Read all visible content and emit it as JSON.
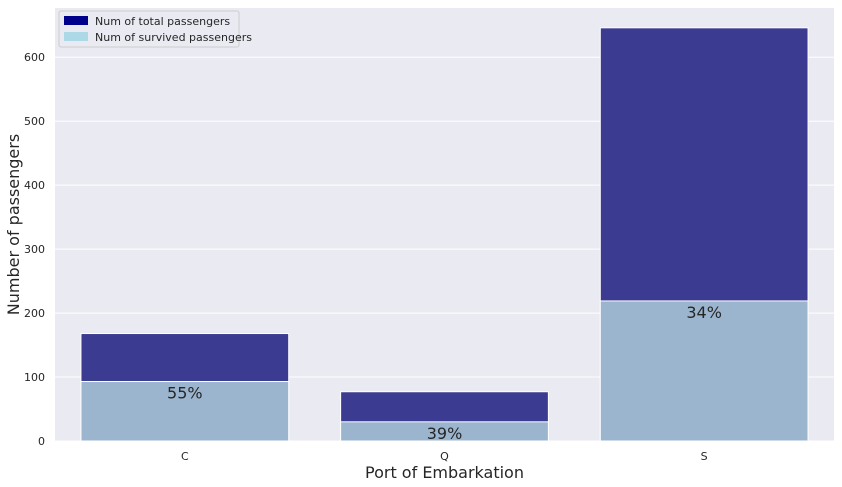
{
  "chart_data": {
    "type": "bar",
    "categories": [
      "C",
      "Q",
      "S"
    ],
    "series": [
      {
        "name": "Num of total passengers",
        "values": [
          168,
          77,
          646
        ],
        "color": "#00008b",
        "display_color": "#3a3b91"
      },
      {
        "name": "Num of survived passengers",
        "values": [
          93,
          30,
          219
        ],
        "color": "#add8e6",
        "display_color": "#9bb5cf"
      }
    ],
    "bar_labels": [
      "55%",
      "39%",
      "34%"
    ],
    "xlabel": "Port of Embarkation",
    "ylabel": "Number of passengers",
    "ylim": [
      0,
      677
    ],
    "yticks": [
      0,
      100,
      200,
      300,
      400,
      500,
      600
    ],
    "grid": true,
    "legend_position": "top-left",
    "background_color": "#eaeaf2",
    "grid_color": "#ffffff"
  }
}
